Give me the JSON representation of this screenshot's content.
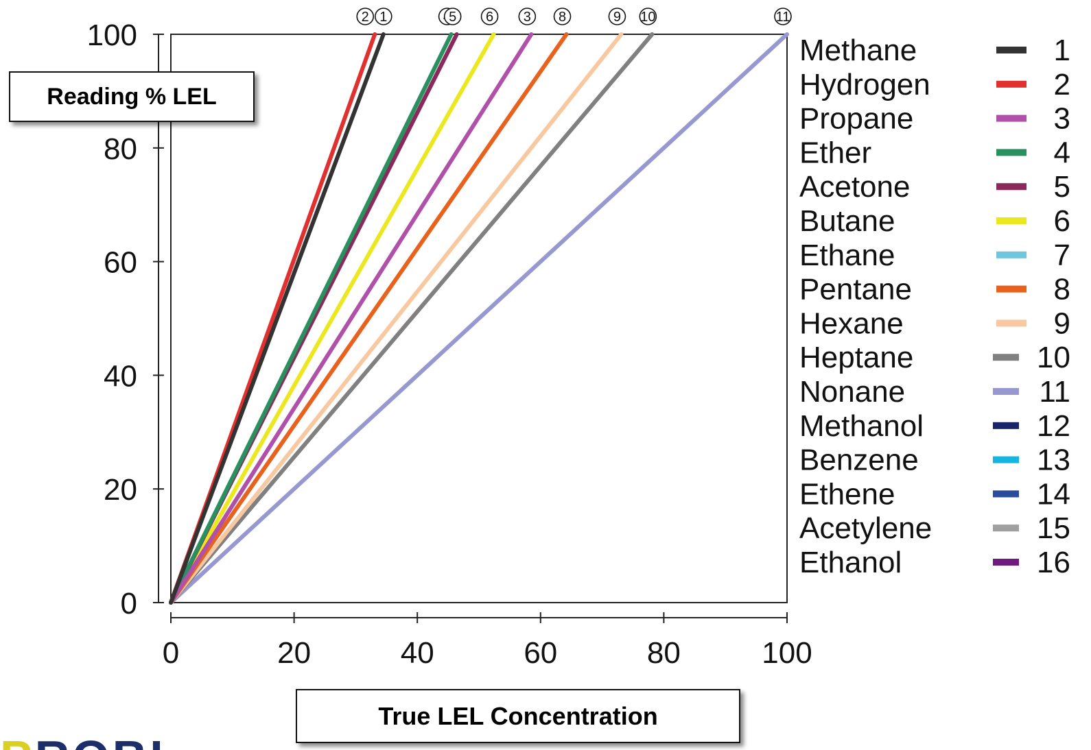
{
  "chart_data": {
    "type": "line",
    "xlabel": "True LEL Concentration",
    "ylabel": "Reading % LEL",
    "xlim": [
      0,
      100
    ],
    "ylim": [
      0,
      100
    ],
    "xticks": [
      "0",
      "20",
      "40",
      "60",
      "80",
      "100"
    ],
    "yticks": [
      "0",
      "20",
      "40",
      "60",
      "80",
      "100"
    ],
    "grid": false,
    "legend_position": "right",
    "series": [
      {
        "name": "Methane",
        "id": "1",
        "color": "#333333",
        "x": [
          0,
          34.5
        ],
        "y": [
          0,
          100
        ],
        "marker": "1"
      },
      {
        "name": "Hydrogen",
        "id": "2",
        "color": "#e03030",
        "x": [
          0,
          33.1
        ],
        "y": [
          0,
          100
        ],
        "marker": "2"
      },
      {
        "name": "Propane",
        "id": "3",
        "color": "#b050a8",
        "x": [
          0,
          58.5
        ],
        "y": [
          0,
          100
        ],
        "marker": "3"
      },
      {
        "name": "Ether",
        "id": "4",
        "color": "#2a9060",
        "x": [
          0,
          45.5
        ],
        "y": [
          0,
          100
        ],
        "marker": "4"
      },
      {
        "name": "Acetone",
        "id": "5",
        "color": "#8a2a5a",
        "x": [
          0,
          46.4
        ],
        "y": [
          0,
          100
        ],
        "marker": "5"
      },
      {
        "name": "Butane",
        "id": "6",
        "color": "#ece820",
        "x": [
          0,
          52.4
        ],
        "y": [
          0,
          100
        ],
        "marker": "6"
      },
      {
        "name": "Ethane",
        "id": "7",
        "color": "#70c6dc",
        "x": [],
        "y": [],
        "marker": ""
      },
      {
        "name": "Pentane",
        "id": "8",
        "color": "#e8621e",
        "x": [
          0,
          64.2
        ],
        "y": [
          0,
          100
        ],
        "marker": "8"
      },
      {
        "name": "Hexane",
        "id": "9",
        "color": "#f8c8a0",
        "x": [
          0,
          73.1
        ],
        "y": [
          0,
          100
        ],
        "marker": "9"
      },
      {
        "name": "Heptane",
        "id": "10",
        "color": "#808080",
        "x": [
          0,
          78.1
        ],
        "y": [
          0,
          100
        ],
        "marker": "10"
      },
      {
        "name": "Nonane",
        "id": "11",
        "color": "#9898d0",
        "x": [
          0,
          100
        ],
        "y": [
          0,
          100
        ],
        "marker": "11"
      },
      {
        "name": "Methanol",
        "id": "12",
        "color": "#1a2468",
        "x": [],
        "y": [],
        "marker": ""
      },
      {
        "name": "Benzene",
        "id": "13",
        "color": "#18b4e0",
        "x": [],
        "y": [],
        "marker": ""
      },
      {
        "name": "Ethene",
        "id": "14",
        "color": "#2a4c9a",
        "x": [],
        "y": [],
        "marker": ""
      },
      {
        "name": "Acetylene",
        "id": "15",
        "color": "#a0a0a0",
        "x": [],
        "y": [],
        "marker": ""
      },
      {
        "name": "Ethanol",
        "id": "16",
        "color": "#701a80",
        "x": [],
        "y": [],
        "marker": ""
      }
    ],
    "top_markers": [
      "2",
      "1",
      "4",
      "5",
      "6",
      "3",
      "8",
      "9",
      "10",
      "11"
    ]
  },
  "logo_text": "PROBI"
}
